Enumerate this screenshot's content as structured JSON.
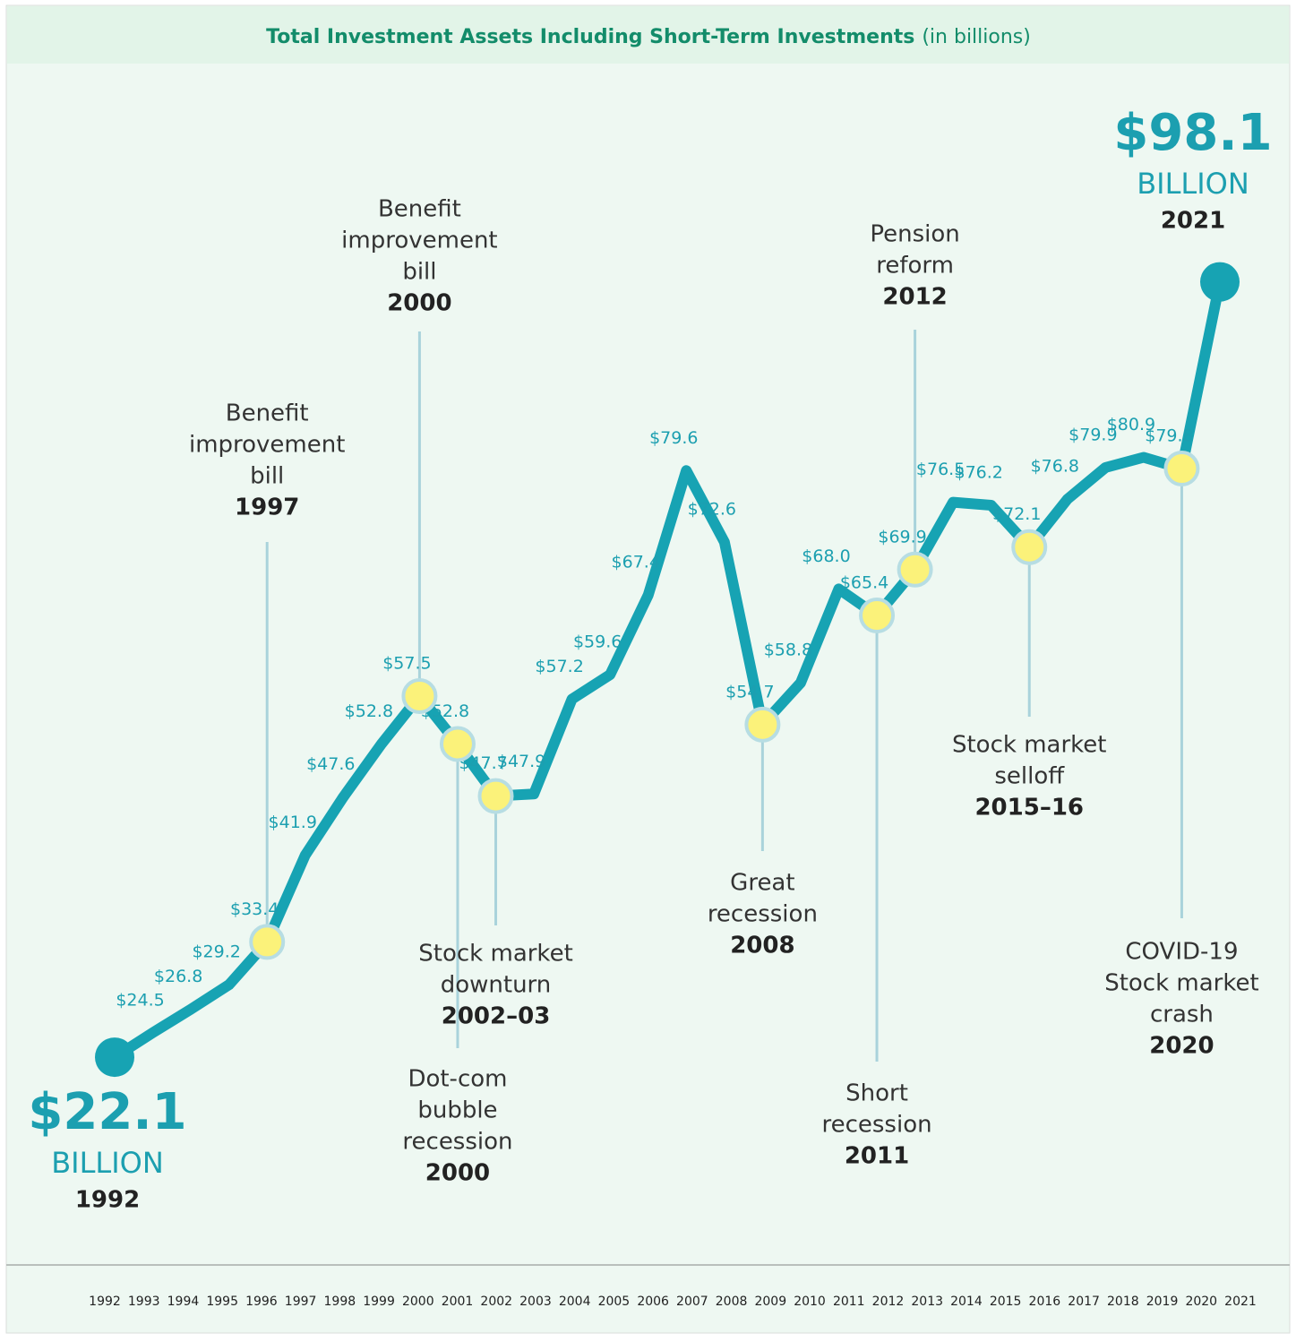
{
  "chart_data": {
    "type": "line",
    "title": "Total Investment Assets Including Short-Term Investments",
    "title_note": "(in billions)",
    "unit_label": "BILLION",
    "categories": [
      "1992",
      "1993",
      "1994",
      "1995",
      "1996",
      "1997",
      "1998",
      "1999",
      "2000",
      "2001",
      "2002",
      "2003",
      "2004",
      "2005",
      "2006",
      "2007",
      "2008",
      "2009",
      "2010",
      "2011",
      "2012",
      "2013",
      "2014",
      "2015",
      "2016",
      "2017",
      "2018",
      "2019",
      "2020",
      "2021"
    ],
    "values": [
      22.1,
      24.5,
      26.8,
      29.2,
      33.4,
      41.9,
      47.6,
      52.8,
      57.5,
      52.8,
      47.7,
      47.9,
      57.2,
      59.6,
      67.4,
      79.6,
      72.6,
      54.7,
      58.8,
      68.0,
      65.4,
      69.9,
      76.5,
      76.2,
      72.1,
      76.8,
      79.9,
      80.9,
      79.8,
      98.1
    ],
    "value_labels": [
      "$22.1",
      "$24.5",
      "$26.8",
      "$29.2",
      "$33.4",
      "$41.9",
      "$47.6",
      "$52.8",
      "$57.5",
      "$52.8",
      "$47.7",
      "$47.9",
      "$57.2",
      "$59.6",
      "$67.4",
      "$79.6",
      "$72.6",
      "$54.7",
      "$58.8",
      "$68.0",
      "$65.4",
      "$69.9",
      "$76.5",
      "$76.2",
      "$72.1",
      "$76.8",
      "$79.9",
      "$80.9",
      "$79.8",
      "$98.1"
    ],
    "color": "#17a3b3",
    "ylim": [
      20,
      100
    ],
    "annotations": [
      {
        "lines": [
          "Benefit",
          "improvement",
          "bill"
        ],
        "year": "1997"
      },
      {
        "lines": [
          "Benefit",
          "improvement",
          "bill"
        ],
        "year": "2000"
      },
      {
        "lines": [
          "Dot-com",
          "bubble",
          "recession"
        ],
        "year": "2000"
      },
      {
        "lines": [
          "Stock market",
          "downturn"
        ],
        "year": "2002–03"
      },
      {
        "lines": [
          "Great",
          "recession"
        ],
        "year": "2008"
      },
      {
        "lines": [
          "Short",
          "recession"
        ],
        "year": "2011"
      },
      {
        "lines": [
          "Pension",
          "reform"
        ],
        "year": "2012"
      },
      {
        "lines": [
          "Stock market",
          "selloff"
        ],
        "year": "2015–16"
      },
      {
        "lines": [
          "COVID-19",
          "Stock market",
          "crash"
        ],
        "year": "2020"
      }
    ]
  }
}
